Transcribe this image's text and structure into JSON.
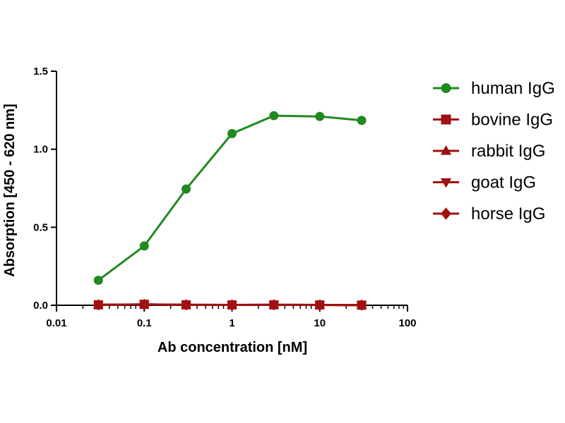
{
  "chart_data": {
    "type": "line",
    "title": "",
    "xlabel": "Ab concentration [nM]",
    "ylabel": "Absorption [450 - 620 nm]",
    "xscale": "log",
    "xlim": [
      0.01,
      100
    ],
    "ylim": [
      0,
      1.5
    ],
    "x_ticks": [
      0.01,
      0.1,
      1,
      10,
      100
    ],
    "x_tick_labels": [
      "0.01",
      "0.1",
      "1",
      "10",
      "100"
    ],
    "y_ticks": [
      0,
      0.5,
      1.0,
      1.5
    ],
    "y_tick_labels": [
      "0.0",
      "0.5",
      "1.0",
      "1.5"
    ],
    "grid": false,
    "legend_position": "right",
    "x": [
      0.03,
      0.1,
      0.3,
      1,
      3,
      10,
      30
    ],
    "series": [
      {
        "name": "human IgG",
        "marker": "circle",
        "color": "#1f8a1f",
        "values": [
          0.16,
          0.38,
          0.745,
          1.1,
          1.215,
          1.21,
          1.185
        ]
      },
      {
        "name": "bovine IgG",
        "marker": "square",
        "color": "#a01010",
        "values": [
          0.003,
          0.006,
          0.003,
          0.002,
          0.003,
          0.002,
          0.001
        ]
      },
      {
        "name": "rabbit IgG",
        "marker": "triangle-up",
        "color": "#a01010",
        "values": [
          0.003,
          0.005,
          0.003,
          0.002,
          0.003,
          0.002,
          0.001
        ]
      },
      {
        "name": "goat IgG",
        "marker": "triangle-down",
        "color": "#a01010",
        "values": [
          0.003,
          0.005,
          0.003,
          0.002,
          0.003,
          0.002,
          0.001
        ]
      },
      {
        "name": "horse IgG",
        "marker": "diamond",
        "color": "#a01010",
        "values": [
          0.003,
          0.005,
          0.003,
          0.002,
          0.003,
          0.002,
          0.001
        ]
      }
    ]
  }
}
